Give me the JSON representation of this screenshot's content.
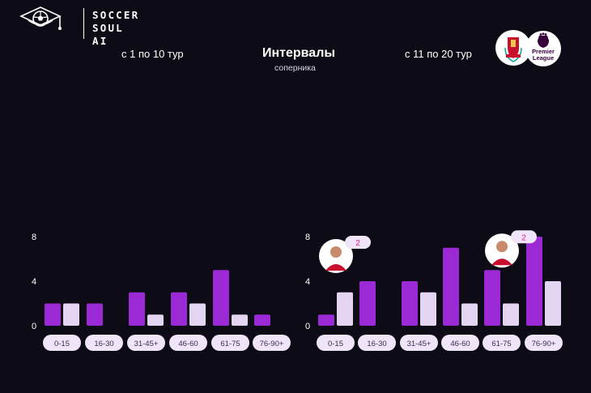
{
  "brand": {
    "line1": "SOCCER",
    "line2": "SOUL AI"
  },
  "header": {
    "left": "с 1 по 10 тур",
    "center_title": "Интервалы",
    "center_subtitle": "соперника",
    "right": "с 11 по 20 тур"
  },
  "badges": {
    "premier_league": [
      "Premier",
      "League"
    ],
    "club": "liverpool-crest-icon"
  },
  "colors": {
    "background": "#0d0c16",
    "primary": "#9b2ad6",
    "secondary": "#e3d4f2",
    "pill": "#efe4f8",
    "callout": "#e0208a"
  },
  "chart_data": [
    {
      "type": "bar",
      "categories": [
        "0-15",
        "16-30",
        "31-45+",
        "46-60",
        "61-75",
        "76-90+"
      ],
      "yticks": [
        0,
        4,
        8
      ],
      "ylim": [
        0,
        8
      ],
      "series": [
        {
          "values": [
            2,
            2,
            3,
            3,
            5,
            1
          ]
        },
        {
          "values": [
            2,
            0,
            1,
            2,
            1,
            0
          ]
        }
      ],
      "callouts": []
    },
    {
      "type": "bar",
      "categories": [
        "0-15",
        "16-30",
        "31-45+",
        "46-60",
        "61-75",
        "76-90+"
      ],
      "yticks": [
        0,
        4,
        8
      ],
      "ylim": [
        0,
        8
      ],
      "series": [
        {
          "values": [
            1,
            4,
            4,
            7,
            5,
            8
          ]
        },
        {
          "values": [
            3,
            0,
            3,
            2,
            2,
            4
          ]
        }
      ],
      "callouts": [
        {
          "category": "0-15",
          "value": "2",
          "icon": "player-avatar-icon"
        },
        {
          "category": "61-75",
          "value": "2",
          "icon": "player-avatar-icon"
        }
      ]
    }
  ]
}
